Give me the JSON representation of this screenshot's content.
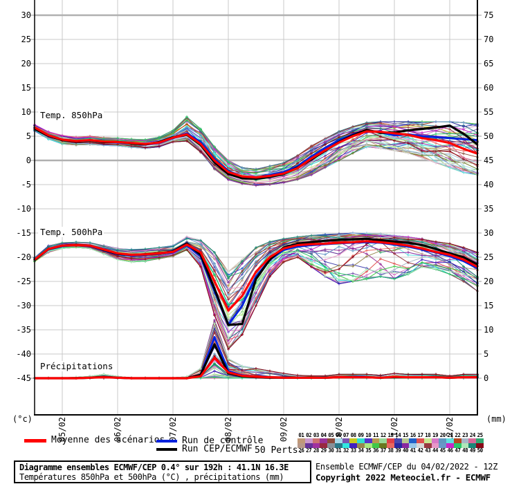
{
  "chart_data": {
    "type": "line",
    "title": "Diagramme ensembles ECMWF/CEP 0.4° sur 192h : 41.1N 16.3E",
    "x_hours": [
      0,
      6,
      12,
      18,
      24,
      30,
      36,
      42,
      48,
      54,
      60,
      66,
      72,
      78,
      84,
      90,
      96,
      102,
      108,
      114,
      120,
      126,
      132,
      138,
      144,
      150,
      156,
      162,
      168,
      174,
      180,
      186,
      192
    ],
    "x_tick_labels": [
      "05/02",
      "06/02",
      "07/02",
      "08/02",
      "09/02",
      "10/02",
      "11/02",
      "12/02"
    ],
    "left_axis": {
      "unit": "(°c)",
      "ticks": [
        30,
        25,
        20,
        15,
        10,
        5,
        0,
        -5,
        -10,
        -15,
        -20,
        -25,
        -30,
        -35,
        -40,
        -45
      ]
    },
    "right_axis": {
      "unit": "(mm)",
      "ticks": [
        75,
        70,
        65,
        60,
        55,
        50,
        45,
        40,
        35,
        30,
        25,
        20,
        15,
        10,
        5,
        0
      ]
    },
    "panels": [
      {
        "id": "temp850",
        "label": "Temp. 850hPa",
        "scale": "left",
        "series": {
          "mean": [
            6.8,
            5.2,
            4.3,
            4.0,
            4.2,
            3.9,
            3.8,
            3.6,
            3.4,
            3.7,
            4.7,
            5.4,
            3.4,
            0.0,
            -2.4,
            -3.3,
            -3.5,
            -3.2,
            -2.7,
            -1.6,
            0.4,
            2.1,
            3.7,
            5.0,
            6.0,
            5.9,
            5.6,
            5.3,
            4.6,
            4.2,
            3.6,
            2.4,
            1.4
          ],
          "control": [
            6.6,
            5.0,
            4.2,
            3.9,
            4.1,
            3.8,
            3.7,
            3.5,
            3.3,
            3.6,
            4.6,
            5.6,
            3.8,
            0.3,
            -2.2,
            -3.4,
            -3.6,
            -3.0,
            -2.4,
            -1.2,
            0.8,
            2.6,
            4.2,
            5.4,
            6.2,
            5.8,
            5.2,
            5.4,
            5.0,
            4.8,
            4.6,
            4.4,
            4.2
          ],
          "ecmwf": [
            6.5,
            5.1,
            4.2,
            3.9,
            4.1,
            3.8,
            3.8,
            3.5,
            3.3,
            3.8,
            4.8,
            5.3,
            3.2,
            -0.4,
            -2.8,
            -3.7,
            -3.8,
            -3.4,
            -2.8,
            -1.5,
            0.2,
            2.0,
            3.8,
            5.2,
            6.3,
            5.7,
            5.8,
            6.2,
            6.5,
            6.8,
            7.2,
            5.5,
            3.3
          ]
        },
        "members_envelope": {
          "min": [
            6.0,
            4.4,
            3.4,
            3.2,
            3.3,
            3.1,
            3.0,
            2.7,
            2.5,
            2.8,
            3.8,
            4.0,
            1.5,
            -1.8,
            -4.0,
            -4.8,
            -5.2,
            -5.0,
            -4.6,
            -4.0,
            -3.0,
            -1.5,
            0.0,
            1.5,
            2.8,
            2.5,
            2.0,
            1.5,
            0.5,
            -0.5,
            -1.5,
            -2.5,
            -3.0
          ],
          "max": [
            7.5,
            6.0,
            5.2,
            4.8,
            5.0,
            4.7,
            4.6,
            4.4,
            4.3,
            4.8,
            6.2,
            9.0,
            6.5,
            2.8,
            0.0,
            -1.5,
            -1.8,
            -1.2,
            -0.5,
            1.0,
            3.0,
            4.5,
            6.0,
            7.0,
            7.8,
            8.0,
            8.0,
            8.0,
            8.0,
            8.0,
            8.0,
            7.8,
            7.5
          ]
        }
      },
      {
        "id": "temp500",
        "label": "Temp. 500hPa",
        "scale": "left",
        "series": {
          "mean": [
            -20.5,
            -18.3,
            -17.6,
            -17.5,
            -17.6,
            -18.4,
            -19.2,
            -19.5,
            -19.4,
            -19.2,
            -18.9,
            -17.4,
            -19.0,
            -25.0,
            -31.0,
            -28.0,
            -23.0,
            -20.0,
            -18.2,
            -17.5,
            -17.3,
            -17.2,
            -17.0,
            -16.9,
            -16.7,
            -16.9,
            -17.2,
            -17.6,
            -18.2,
            -18.9,
            -19.5,
            -20.5,
            -22.0
          ],
          "control": [
            -20.6,
            -18.4,
            -17.7,
            -17.5,
            -17.7,
            -18.6,
            -19.4,
            -19.6,
            -19.5,
            -19.3,
            -19.0,
            -17.6,
            -19.8,
            -27.0,
            -34.0,
            -30.0,
            -24.0,
            -20.5,
            -18.5,
            -17.8,
            -17.5,
            -17.3,
            -17.1,
            -17.0,
            -16.9,
            -17.0,
            -17.4,
            -17.8,
            -18.4,
            -19.0,
            -19.8,
            -20.8,
            -22.3
          ],
          "ecmwf": [
            -20.6,
            -18.3,
            -17.6,
            -17.4,
            -17.6,
            -18.5,
            -19.3,
            -19.5,
            -19.4,
            -19.2,
            -18.8,
            -17.2,
            -19.5,
            -26.5,
            -34.0,
            -33.8,
            -24.5,
            -20.5,
            -18.0,
            -17.2,
            -16.9,
            -16.6,
            -16.4,
            -16.3,
            -16.2,
            -16.5,
            -16.8,
            -17.0,
            -17.5,
            -18.3,
            -19.2,
            -20.0,
            -21.5
          ]
        },
        "members_envelope": {
          "min": [
            -21.0,
            -19.0,
            -18.2,
            -18.0,
            -18.2,
            -19.3,
            -20.5,
            -21.0,
            -20.8,
            -20.3,
            -19.8,
            -18.5,
            -22.0,
            -32.0,
            -39.0,
            -36.0,
            -30.0,
            -24.0,
            -21.0,
            -20.0,
            -22.0,
            -24.0,
            -25.5,
            -25.0,
            -24.5,
            -24.0,
            -24.5,
            -23.5,
            -22.0,
            -22.5,
            -23.5,
            -25.0,
            -27.0
          ],
          "max": [
            -20.0,
            -17.6,
            -17.0,
            -16.9,
            -17.0,
            -17.6,
            -18.2,
            -18.4,
            -18.3,
            -18.0,
            -17.6,
            -15.8,
            -16.5,
            -19.0,
            -23.0,
            -20.5,
            -18.0,
            -16.8,
            -16.2,
            -15.8,
            -15.5,
            -15.3,
            -15.2,
            -15.0,
            -15.0,
            -15.2,
            -15.5,
            -15.8,
            -16.2,
            -16.8,
            -17.2,
            -18.0,
            -19.0
          ]
        }
      },
      {
        "id": "precip",
        "label": "Précipitations",
        "scale": "right",
        "series": {
          "mean": [
            0,
            0,
            0,
            0,
            0.1,
            0.2,
            0.1,
            0,
            0,
            0,
            0,
            0,
            0.4,
            4.2,
            1.2,
            0.5,
            0.3,
            0.2,
            0.1,
            0.1,
            0.1,
            0.1,
            0.2,
            0.2,
            0.2,
            0.1,
            0.3,
            0.2,
            0.2,
            0.2,
            0.1,
            0.2,
            0.2
          ],
          "control": [
            0,
            0,
            0,
            0,
            0.1,
            0.2,
            0.1,
            0,
            0,
            0,
            0,
            0,
            0.7,
            8.5,
            1.5,
            0.6,
            0.3,
            0.2,
            0.1,
            0.1,
            0.1,
            0.1,
            0.2,
            0.2,
            0.2,
            0.1,
            0.3,
            0.2,
            0.2,
            0.2,
            0.1,
            0.2,
            0.2
          ],
          "ecmwf": [
            0,
            0,
            0,
            0,
            0.1,
            0.3,
            0.1,
            0,
            0,
            0,
            0,
            0,
            0.7,
            7.0,
            1.0,
            0.4,
            0.2,
            0.1,
            0.1,
            0.1,
            0.1,
            0.1,
            0.2,
            0.2,
            0.2,
            0.1,
            0.2,
            0.2,
            0.2,
            0.2,
            0.1,
            0.2,
            0.2
          ]
        },
        "members_envelope": {
          "min": [
            0,
            0,
            0,
            0,
            0,
            0,
            0,
            0,
            0,
            0,
            0,
            0,
            0,
            0,
            0,
            0,
            0,
            0,
            0,
            0,
            0,
            0,
            0,
            0,
            0,
            0,
            0,
            0,
            0,
            0,
            0,
            0,
            0
          ],
          "max": [
            0.1,
            0.1,
            0.1,
            0.2,
            0.4,
            0.8,
            0.4,
            0.1,
            0.1,
            0.1,
            0.1,
            0.3,
            2.0,
            12.0,
            4.0,
            2.5,
            2.0,
            1.5,
            1.0,
            0.6,
            0.5,
            0.5,
            0.8,
            0.8,
            0.8,
            0.6,
            1.0,
            0.8,
            0.8,
            0.8,
            0.5,
            0.8,
            0.8
          ]
        }
      }
    ]
  },
  "legend": {
    "items": [
      {
        "label": "Moyenne des scénarios",
        "color": "#ff0000"
      },
      {
        "label": "Run de contrôle",
        "color": "#0022dd"
      },
      {
        "label": "Run CEP/ECMWF",
        "color": "#000000"
      }
    ],
    "perts_label": "50 Perts."
  },
  "perts": {
    "numbers": [
      "01",
      "02",
      "03",
      "04",
      "05",
      "06",
      "07",
      "08",
      "09",
      "10",
      "11",
      "12",
      "13",
      "14",
      "15",
      "16",
      "17",
      "18",
      "19",
      "20",
      "21",
      "22",
      "23",
      "24",
      "25",
      "26",
      "27",
      "28",
      "29",
      "30",
      "31",
      "32",
      "33",
      "34",
      "35",
      "36",
      "37",
      "38",
      "39",
      "40",
      "41",
      "42",
      "43",
      "44",
      "45",
      "46",
      "47",
      "48",
      "49",
      "50"
    ],
    "colors": [
      "#c09878",
      "#cc99cc",
      "#cc7272",
      "#993399",
      "#8b4a3a",
      "#a8d8e8",
      "#7a55b0",
      "#c8c820",
      "#30e0d0",
      "#5533cc",
      "#b89a50",
      "#98d898",
      "#e04048",
      "#4848b0",
      "#b8c890",
      "#2060c8",
      "#e05050",
      "#c8e890",
      "#d878c8",
      "#6098c0",
      "#60e0e0",
      "#b84820",
      "#a8b8c8",
      "#d86898",
      "#30a870",
      "#b89888",
      "#663399",
      "#a030a0",
      "#982840",
      "#889098",
      "#287888",
      "#30e8e0",
      "#4020c0",
      "#988850",
      "#a8e880",
      "#40c848",
      "#687820",
      "#e86860",
      "#2828a0",
      "#8828a0",
      "#98c8e8",
      "#d8d8d8",
      "#983840",
      "#e898c8",
      "#6898c8",
      "#c828c8",
      "#28c868",
      "#b0e8b8",
      "#188878",
      "#880818"
    ]
  },
  "footer": {
    "box_title": "Diagramme ensembles ECMWF/CEP 0.4° sur 192h : 41.1N 16.3E",
    "box_subtitle": "Températures 850hPa et 500hPa (°C) , précipitations (mm)",
    "run_info": "Ensemble ECMWF/CEP du 04/02/2022 - 12Z",
    "copyright": "Copyright 2022 Meteociel.fr - ECMWF"
  }
}
